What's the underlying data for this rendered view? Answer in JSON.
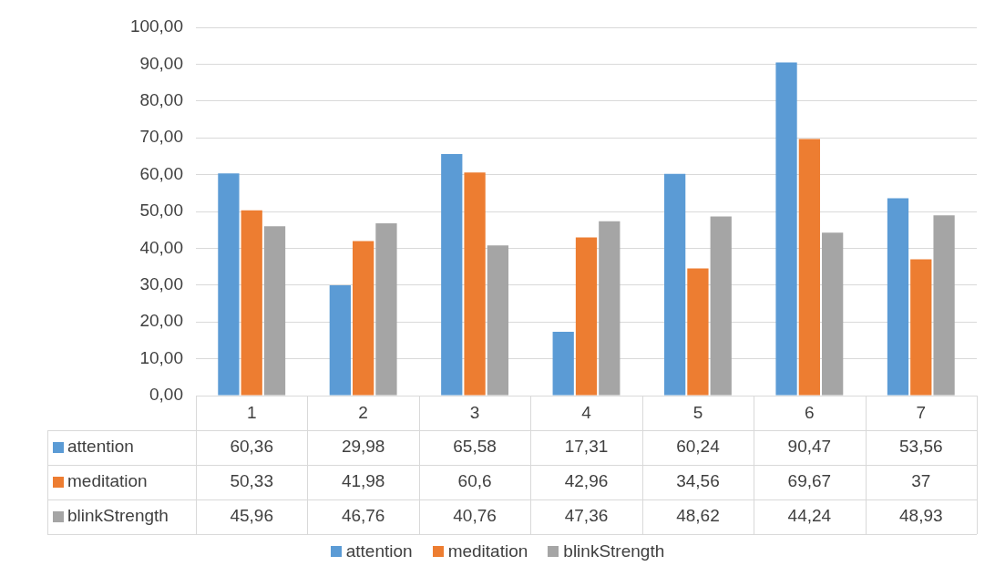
{
  "chart_data": {
    "type": "bar",
    "categories": [
      "1",
      "2",
      "3",
      "4",
      "5",
      "6",
      "7"
    ],
    "series": [
      {
        "name": "attention",
        "color": "#5b9bd5",
        "values": [
          60.36,
          29.98,
          65.58,
          17.31,
          60.24,
          90.47,
          53.56
        ],
        "value_labels": [
          "60,36",
          "29,98",
          "65,58",
          "17,31",
          "60,24",
          "90,47",
          "53,56"
        ]
      },
      {
        "name": "meditation",
        "color": "#ed7d31",
        "values": [
          50.33,
          41.98,
          60.6,
          42.96,
          34.56,
          69.67,
          37
        ],
        "value_labels": [
          "50,33",
          "41,98",
          "60,6",
          "42,96",
          "34,56",
          "69,67",
          "37"
        ]
      },
      {
        "name": "blinkStrength",
        "color": "#a5a5a5",
        "values": [
          45.96,
          46.76,
          40.76,
          47.36,
          48.62,
          44.24,
          48.93
        ],
        "value_labels": [
          "45,96",
          "46,76",
          "40,76",
          "47,36",
          "48,62",
          "44,24",
          "48,93"
        ]
      }
    ],
    "ylim": [
      0,
      100
    ],
    "yticks": [
      {
        "value": 0,
        "label": "0,00"
      },
      {
        "value": 10,
        "label": "10,00"
      },
      {
        "value": 20,
        "label": "20,00"
      },
      {
        "value": 30,
        "label": "30,00"
      },
      {
        "value": 40,
        "label": "40,00"
      },
      {
        "value": 50,
        "label": "50,00"
      },
      {
        "value": 60,
        "label": "60,00"
      },
      {
        "value": 70,
        "label": "70,00"
      },
      {
        "value": 80,
        "label": "80,00"
      },
      {
        "value": 90,
        "label": "90,00"
      },
      {
        "value": 100,
        "label": "100,00"
      }
    ],
    "grid": "y",
    "legend": "bottom"
  }
}
